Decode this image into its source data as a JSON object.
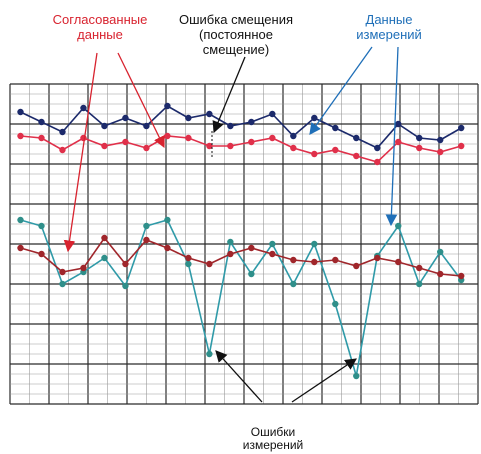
{
  "annotations": {
    "reconciled": [
      "Согласованные",
      "данные"
    ],
    "bias": [
      "Ошибка смещения",
      "(постоянное",
      "смещение)"
    ],
    "measured": [
      "Данные",
      "измерений"
    ],
    "errors": [
      "Ошибки",
      "измерений"
    ]
  },
  "colors": {
    "reconciled_label": "#d8232f",
    "measured_label": "#1f6fb8",
    "text": "#111111",
    "navy_series": "#1c2a6b",
    "pink_series": "#e0304a",
    "teal_series": "#2f9aa8",
    "teal_marker": "#2f8f8a",
    "brown_series": "#a0262b",
    "grid_major": "#2b2b2b",
    "grid_minor": "#9a9a9a"
  },
  "chart_data": {
    "type": "line",
    "x": [
      1,
      2,
      3,
      4,
      5,
      6,
      7,
      8,
      9,
      10,
      11,
      12,
      13,
      14,
      15,
      16,
      17,
      18,
      19,
      20,
      21,
      22
    ],
    "series": [
      {
        "values": [
          7.6,
          7.1,
          6.6,
          7.8,
          6.9,
          7.3,
          6.9,
          7.9,
          7.3,
          7.5,
          6.9,
          7.1,
          7.5,
          6.4,
          7.3,
          6.8,
          6.3,
          5.8,
          7.0,
          6.3,
          6.2,
          6.8
        ]
      },
      {
        "values": [
          6.4,
          6.3,
          5.7,
          6.3,
          5.9,
          6.1,
          5.8,
          6.4,
          6.3,
          5.9,
          5.9,
          6.1,
          6.3,
          5.8,
          5.5,
          5.7,
          5.4,
          5.1,
          6.1,
          5.8,
          5.6,
          5.9
        ]
      },
      {
        "values": [
          2.2,
          1.9,
          -1.0,
          -0.4,
          0.3,
          -1.1,
          1.9,
          2.2,
          0.0,
          -4.5,
          1.1,
          -0.5,
          1.0,
          -1.0,
          1.0,
          -2.0,
          -5.6,
          0.4,
          1.9,
          -1.0,
          0.6,
          -0.8
        ]
      },
      {
        "values": [
          0.8,
          0.5,
          -0.4,
          -0.2,
          1.3,
          0.0,
          1.2,
          0.8,
          0.3,
          0.0,
          0.5,
          0.8,
          0.5,
          0.2,
          0.1,
          0.2,
          -0.1,
          0.3,
          0.1,
          -0.2,
          -0.5,
          -0.6
        ]
      }
    ],
    "xlim": [
      0.5,
      22.8
    ],
    "ylim": [
      -7,
      9
    ],
    "grid": true
  }
}
